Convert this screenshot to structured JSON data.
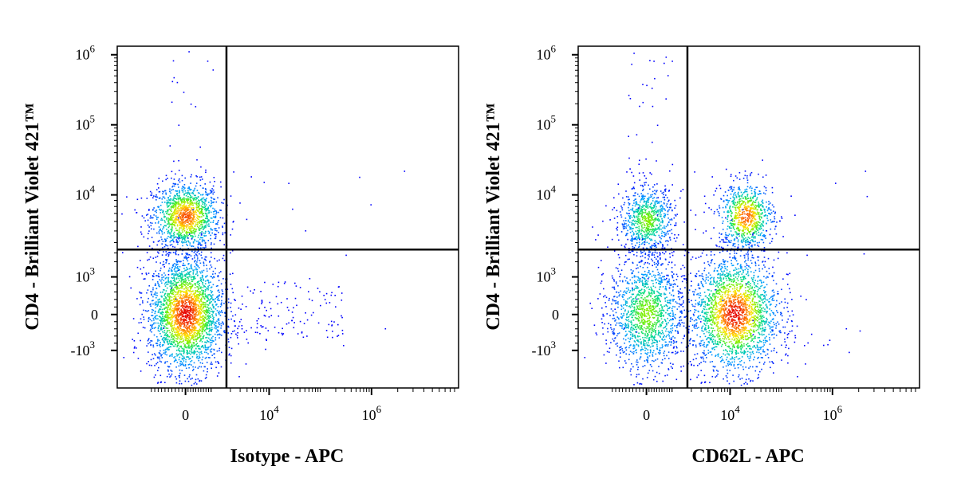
{
  "chart_data": [
    {
      "type": "scatter",
      "xlabel": "Isotype - APC",
      "ylabel": "CD4 - Brilliant Violet 421™",
      "x_scale": "biexponential",
      "y_scale": "biexponential",
      "x_ticks": [
        {
          "value": 0,
          "base": "0",
          "exp": ""
        },
        {
          "value": 10000,
          "base": "10",
          "exp": "4"
        },
        {
          "value": 1000000,
          "base": "10",
          "exp": "6"
        }
      ],
      "y_ticks": [
        {
          "value": 1000000,
          "base": "10",
          "exp": "6"
        },
        {
          "value": 100000,
          "base": "10",
          "exp": "5"
        },
        {
          "value": 10000,
          "base": "10",
          "exp": "4"
        },
        {
          "value": 1000,
          "base": "10",
          "exp": "3"
        },
        {
          "value": 0,
          "base": "0",
          "exp": ""
        },
        {
          "value": -1000,
          "base": "-10",
          "exp": "3"
        }
      ],
      "gates": {
        "x": 1700,
        "y": 3500
      },
      "populations": [
        {
          "x_center": 0,
          "y_center": 6500,
          "density": "high"
        },
        {
          "x_center": 0,
          "y_center": 0,
          "density": "very high"
        }
      ]
    },
    {
      "type": "scatter",
      "xlabel": "CD62L - APC",
      "ylabel": "CD4 - Brilliant Violet 421™",
      "x_scale": "biexponential",
      "y_scale": "biexponential",
      "x_ticks": [
        {
          "value": 0,
          "base": "0",
          "exp": ""
        },
        {
          "value": 10000,
          "base": "10",
          "exp": "4"
        },
        {
          "value": 1000000,
          "base": "10",
          "exp": "6"
        }
      ],
      "y_ticks": [
        {
          "value": 1000000,
          "base": "10",
          "exp": "6"
        },
        {
          "value": 100000,
          "base": "10",
          "exp": "5"
        },
        {
          "value": 10000,
          "base": "10",
          "exp": "4"
        },
        {
          "value": 1000,
          "base": "10",
          "exp": "3"
        },
        {
          "value": 0,
          "base": "0",
          "exp": ""
        },
        {
          "value": -1000,
          "base": "-10",
          "exp": "3"
        }
      ],
      "gates": {
        "x": 1700,
        "y": 3500
      },
      "populations": [
        {
          "x_center": 0,
          "y_center": 6000,
          "density": "medium"
        },
        {
          "x_center": 20000,
          "y_center": 6500,
          "density": "high"
        },
        {
          "x_center": 0,
          "y_center": 0,
          "density": "medium"
        },
        {
          "x_center": 12000,
          "y_center": 0,
          "density": "very high"
        }
      ]
    }
  ]
}
